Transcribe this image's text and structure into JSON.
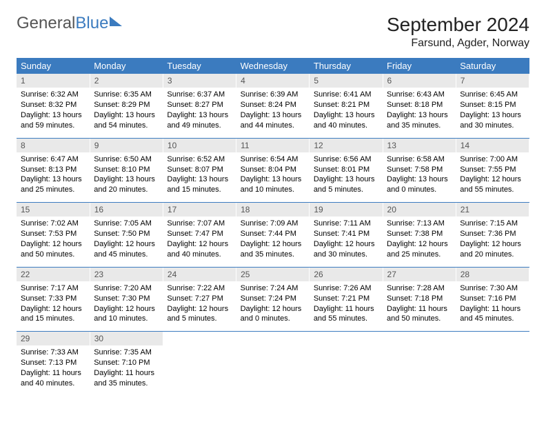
{
  "brand": {
    "part1": "General",
    "part2": "Blue"
  },
  "title": "September 2024",
  "location": "Farsund, Agder, Norway",
  "colors": {
    "accent": "#3b7bbf",
    "daynum_bg": "#e9e9e9",
    "text": "#000000"
  },
  "font": {
    "family": "Arial",
    "title_size": 28,
    "header_size": 13,
    "cell_size": 11
  },
  "weekdays": [
    "Sunday",
    "Monday",
    "Tuesday",
    "Wednesday",
    "Thursday",
    "Friday",
    "Saturday"
  ],
  "weeks": [
    [
      {
        "n": "1",
        "sr": "Sunrise: 6:32 AM",
        "ss": "Sunset: 8:32 PM",
        "d1": "Daylight: 13 hours",
        "d2": "and 59 minutes."
      },
      {
        "n": "2",
        "sr": "Sunrise: 6:35 AM",
        "ss": "Sunset: 8:29 PM",
        "d1": "Daylight: 13 hours",
        "d2": "and 54 minutes."
      },
      {
        "n": "3",
        "sr": "Sunrise: 6:37 AM",
        "ss": "Sunset: 8:27 PM",
        "d1": "Daylight: 13 hours",
        "d2": "and 49 minutes."
      },
      {
        "n": "4",
        "sr": "Sunrise: 6:39 AM",
        "ss": "Sunset: 8:24 PM",
        "d1": "Daylight: 13 hours",
        "d2": "and 44 minutes."
      },
      {
        "n": "5",
        "sr": "Sunrise: 6:41 AM",
        "ss": "Sunset: 8:21 PM",
        "d1": "Daylight: 13 hours",
        "d2": "and 40 minutes."
      },
      {
        "n": "6",
        "sr": "Sunrise: 6:43 AM",
        "ss": "Sunset: 8:18 PM",
        "d1": "Daylight: 13 hours",
        "d2": "and 35 minutes."
      },
      {
        "n": "7",
        "sr": "Sunrise: 6:45 AM",
        "ss": "Sunset: 8:15 PM",
        "d1": "Daylight: 13 hours",
        "d2": "and 30 minutes."
      }
    ],
    [
      {
        "n": "8",
        "sr": "Sunrise: 6:47 AM",
        "ss": "Sunset: 8:13 PM",
        "d1": "Daylight: 13 hours",
        "d2": "and 25 minutes."
      },
      {
        "n": "9",
        "sr": "Sunrise: 6:50 AM",
        "ss": "Sunset: 8:10 PM",
        "d1": "Daylight: 13 hours",
        "d2": "and 20 minutes."
      },
      {
        "n": "10",
        "sr": "Sunrise: 6:52 AM",
        "ss": "Sunset: 8:07 PM",
        "d1": "Daylight: 13 hours",
        "d2": "and 15 minutes."
      },
      {
        "n": "11",
        "sr": "Sunrise: 6:54 AM",
        "ss": "Sunset: 8:04 PM",
        "d1": "Daylight: 13 hours",
        "d2": "and 10 minutes."
      },
      {
        "n": "12",
        "sr": "Sunrise: 6:56 AM",
        "ss": "Sunset: 8:01 PM",
        "d1": "Daylight: 13 hours",
        "d2": "and 5 minutes."
      },
      {
        "n": "13",
        "sr": "Sunrise: 6:58 AM",
        "ss": "Sunset: 7:58 PM",
        "d1": "Daylight: 13 hours",
        "d2": "and 0 minutes."
      },
      {
        "n": "14",
        "sr": "Sunrise: 7:00 AM",
        "ss": "Sunset: 7:55 PM",
        "d1": "Daylight: 12 hours",
        "d2": "and 55 minutes."
      }
    ],
    [
      {
        "n": "15",
        "sr": "Sunrise: 7:02 AM",
        "ss": "Sunset: 7:53 PM",
        "d1": "Daylight: 12 hours",
        "d2": "and 50 minutes."
      },
      {
        "n": "16",
        "sr": "Sunrise: 7:05 AM",
        "ss": "Sunset: 7:50 PM",
        "d1": "Daylight: 12 hours",
        "d2": "and 45 minutes."
      },
      {
        "n": "17",
        "sr": "Sunrise: 7:07 AM",
        "ss": "Sunset: 7:47 PM",
        "d1": "Daylight: 12 hours",
        "d2": "and 40 minutes."
      },
      {
        "n": "18",
        "sr": "Sunrise: 7:09 AM",
        "ss": "Sunset: 7:44 PM",
        "d1": "Daylight: 12 hours",
        "d2": "and 35 minutes."
      },
      {
        "n": "19",
        "sr": "Sunrise: 7:11 AM",
        "ss": "Sunset: 7:41 PM",
        "d1": "Daylight: 12 hours",
        "d2": "and 30 minutes."
      },
      {
        "n": "20",
        "sr": "Sunrise: 7:13 AM",
        "ss": "Sunset: 7:38 PM",
        "d1": "Daylight: 12 hours",
        "d2": "and 25 minutes."
      },
      {
        "n": "21",
        "sr": "Sunrise: 7:15 AM",
        "ss": "Sunset: 7:36 PM",
        "d1": "Daylight: 12 hours",
        "d2": "and 20 minutes."
      }
    ],
    [
      {
        "n": "22",
        "sr": "Sunrise: 7:17 AM",
        "ss": "Sunset: 7:33 PM",
        "d1": "Daylight: 12 hours",
        "d2": "and 15 minutes."
      },
      {
        "n": "23",
        "sr": "Sunrise: 7:20 AM",
        "ss": "Sunset: 7:30 PM",
        "d1": "Daylight: 12 hours",
        "d2": "and 10 minutes."
      },
      {
        "n": "24",
        "sr": "Sunrise: 7:22 AM",
        "ss": "Sunset: 7:27 PM",
        "d1": "Daylight: 12 hours",
        "d2": "and 5 minutes."
      },
      {
        "n": "25",
        "sr": "Sunrise: 7:24 AM",
        "ss": "Sunset: 7:24 PM",
        "d1": "Daylight: 12 hours",
        "d2": "and 0 minutes."
      },
      {
        "n": "26",
        "sr": "Sunrise: 7:26 AM",
        "ss": "Sunset: 7:21 PM",
        "d1": "Daylight: 11 hours",
        "d2": "and 55 minutes."
      },
      {
        "n": "27",
        "sr": "Sunrise: 7:28 AM",
        "ss": "Sunset: 7:18 PM",
        "d1": "Daylight: 11 hours",
        "d2": "and 50 minutes."
      },
      {
        "n": "28",
        "sr": "Sunrise: 7:30 AM",
        "ss": "Sunset: 7:16 PM",
        "d1": "Daylight: 11 hours",
        "d2": "and 45 minutes."
      }
    ],
    [
      {
        "n": "29",
        "sr": "Sunrise: 7:33 AM",
        "ss": "Sunset: 7:13 PM",
        "d1": "Daylight: 11 hours",
        "d2": "and 40 minutes."
      },
      {
        "n": "30",
        "sr": "Sunrise: 7:35 AM",
        "ss": "Sunset: 7:10 PM",
        "d1": "Daylight: 11 hours",
        "d2": "and 35 minutes."
      },
      null,
      null,
      null,
      null,
      null
    ]
  ]
}
